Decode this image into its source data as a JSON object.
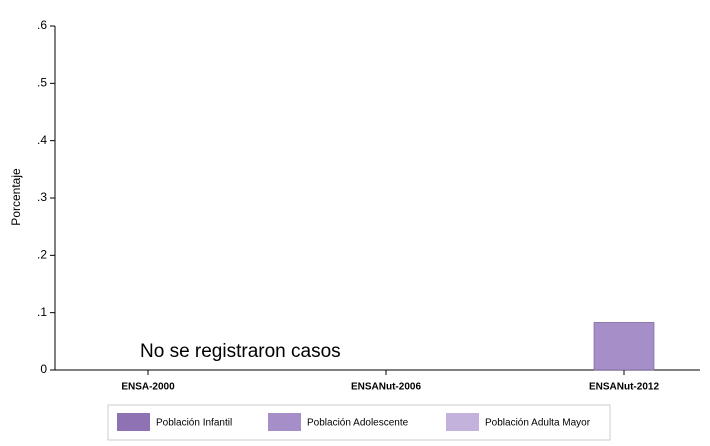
{
  "chart_data": {
    "type": "bar",
    "categories": [
      "ENSA-2000",
      "ENSANut-2006",
      "ENSANut-2012"
    ],
    "series": [
      {
        "name": "Población Infantil",
        "color": "#8e72b4",
        "values": [
          null,
          null,
          null
        ]
      },
      {
        "name": "Población Adolescente",
        "color": "#a68fc8",
        "values": [
          null,
          null,
          0.083
        ]
      },
      {
        "name": "Población Adulta Mayor",
        "color": "#c3b3dc",
        "values": [
          null,
          null,
          null
        ]
      }
    ],
    "ylabel": "Porcentaje",
    "annotation": "No se  registraron casos",
    "ylim": [
      0,
      0.6
    ],
    "yticks": [
      0,
      {
        "value": 0.1,
        "label": ".1"
      },
      {
        "value": 0.2,
        "label": ".2"
      },
      {
        "value": 0.3,
        "label": ".3"
      },
      {
        "value": 0.4,
        "label": ".4"
      },
      {
        "value": 0.5,
        "label": ".5"
      },
      {
        "value": 0.6,
        "label": ".6"
      }
    ],
    "grid": false,
    "legend": "bottom"
  }
}
